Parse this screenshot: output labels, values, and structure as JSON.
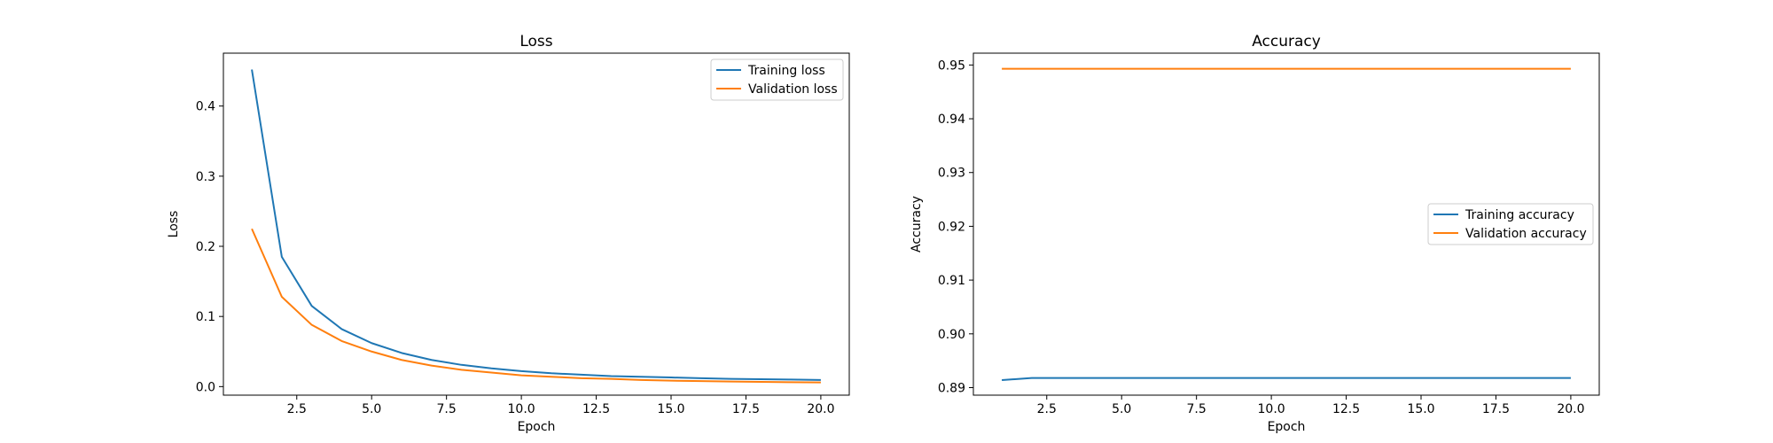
{
  "chart_data": [
    {
      "type": "line",
      "title": "Loss",
      "xlabel": "Epoch",
      "ylabel": "Loss",
      "xlim": [
        0.05,
        20.95
      ],
      "ylim": [
        -0.0122,
        0.4754
      ],
      "xticks": [
        2.5,
        5.0,
        7.5,
        10.0,
        12.5,
        15.0,
        17.5,
        20.0
      ],
      "xtick_labels": [
        "2.5",
        "5.0",
        "7.5",
        "10.0",
        "12.5",
        "15.0",
        "17.5",
        "20.0"
      ],
      "yticks": [
        0.0,
        0.1,
        0.2,
        0.3,
        0.4
      ],
      "ytick_labels": [
        "0.0",
        "0.1",
        "0.2",
        "0.3",
        "0.4"
      ],
      "grid": false,
      "legend": "upper-right",
      "x": [
        1,
        2,
        3,
        4,
        5,
        6,
        7,
        8,
        9,
        10,
        11,
        12,
        13,
        14,
        15,
        16,
        17,
        18,
        19,
        20
      ],
      "series": [
        {
          "name": "Training loss",
          "color": "#1f77b4",
          "values": [
            0.452,
            0.185,
            0.115,
            0.082,
            0.062,
            0.048,
            0.038,
            0.031,
            0.026,
            0.022,
            0.019,
            0.017,
            0.015,
            0.014,
            0.013,
            0.012,
            0.011,
            0.0105,
            0.01,
            0.0095
          ]
        },
        {
          "name": "Validation loss",
          "color": "#ff7f0e",
          "values": [
            0.225,
            0.128,
            0.088,
            0.065,
            0.05,
            0.038,
            0.03,
            0.024,
            0.02,
            0.016,
            0.014,
            0.012,
            0.011,
            0.0095,
            0.0085,
            0.0078,
            0.0072,
            0.0067,
            0.0063,
            0.006
          ]
        }
      ]
    },
    {
      "type": "line",
      "title": "Accuracy",
      "xlabel": "Epoch",
      "ylabel": "Accuracy",
      "xlim": [
        0.05,
        20.95
      ],
      "ylim": [
        0.8886,
        0.9522
      ],
      "xticks": [
        2.5,
        5.0,
        7.5,
        10.0,
        12.5,
        15.0,
        17.5,
        20.0
      ],
      "xtick_labels": [
        "2.5",
        "5.0",
        "7.5",
        "10.0",
        "12.5",
        "15.0",
        "17.5",
        "20.0"
      ],
      "yticks": [
        0.89,
        0.9,
        0.91,
        0.92,
        0.93,
        0.94,
        0.95
      ],
      "ytick_labels": [
        "0.89",
        "0.90",
        "0.91",
        "0.92",
        "0.93",
        "0.94",
        "0.95"
      ],
      "grid": false,
      "legend": "center-right",
      "x": [
        1,
        2,
        3,
        4,
        5,
        6,
        7,
        8,
        9,
        10,
        11,
        12,
        13,
        14,
        15,
        16,
        17,
        18,
        19,
        20
      ],
      "series": [
        {
          "name": "Training accuracy",
          "color": "#1f77b4",
          "values": [
            0.8914,
            0.8918,
            0.8918,
            0.8918,
            0.8918,
            0.8918,
            0.8918,
            0.8918,
            0.8918,
            0.8918,
            0.8918,
            0.8918,
            0.8918,
            0.8918,
            0.8918,
            0.8918,
            0.8918,
            0.8918,
            0.8918,
            0.8918
          ]
        },
        {
          "name": "Validation accuracy",
          "color": "#ff7f0e",
          "values": [
            0.9493,
            0.9493,
            0.9493,
            0.9493,
            0.9493,
            0.9493,
            0.9493,
            0.9493,
            0.9493,
            0.9493,
            0.9493,
            0.9493,
            0.9493,
            0.9493,
            0.9493,
            0.9493,
            0.9493,
            0.9493,
            0.9493,
            0.9493
          ]
        }
      ]
    }
  ]
}
